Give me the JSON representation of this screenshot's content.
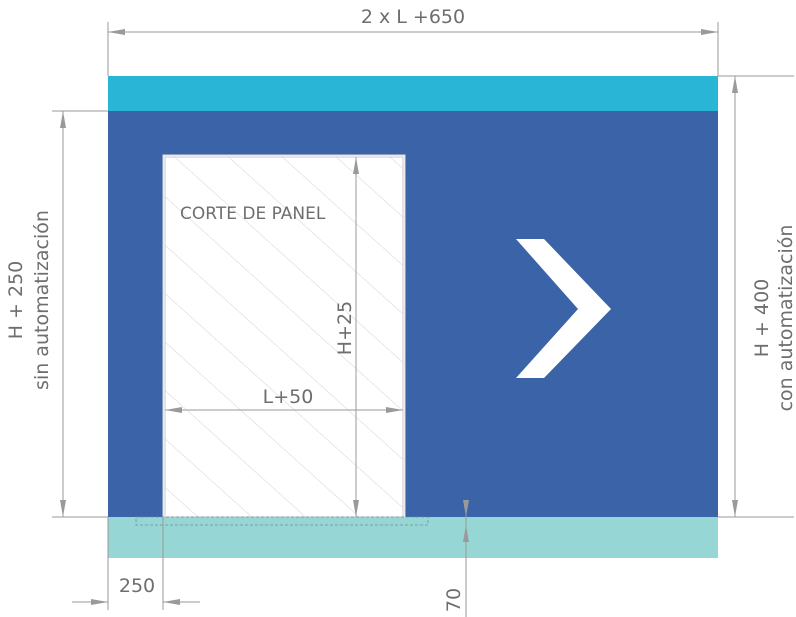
{
  "dimensions": {
    "width_total": "2 x L +650",
    "height_left_line1": "H + 250",
    "height_left_line2": "sin automatización",
    "height_right_line1": "H + 400",
    "height_right_line2": "con automatización",
    "panel_height": "H+25",
    "panel_width": "L+50",
    "offset_left": "250",
    "floor_depth": "70"
  },
  "panel": {
    "label": "CORTE DE PANEL"
  },
  "colors": {
    "wall": "#3a63a8",
    "top_band": "#29b6d6",
    "floor_band": "#96d6d4",
    "panel_fill": "#ffffff",
    "hatch": "#d3d3d3",
    "dimension": "#9a9a9a",
    "text": "#6e6e6e"
  },
  "icons": {
    "direction": "chevron-right-icon"
  }
}
